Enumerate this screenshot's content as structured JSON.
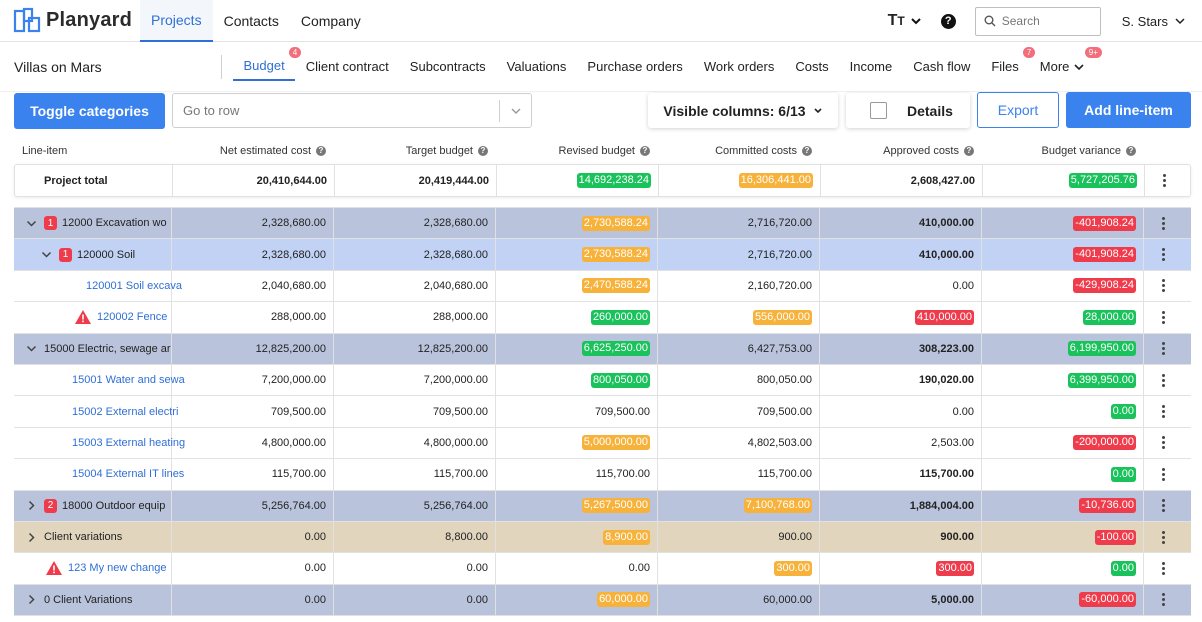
{
  "app": {
    "name": "Planyard"
  },
  "topnav": {
    "items": [
      {
        "label": "Projects",
        "active": true
      },
      {
        "label": "Contacts",
        "active": false
      },
      {
        "label": "Company",
        "active": false
      }
    ],
    "text_size_label": "T",
    "help_label": "?",
    "search_placeholder": "Search",
    "user": "S. Stars"
  },
  "project": {
    "name": "Villas on Mars"
  },
  "subnav": {
    "items": [
      {
        "label": "Budget",
        "badge": "4",
        "active": true
      },
      {
        "label": "Client contract",
        "badge": "",
        "active": false
      },
      {
        "label": "Subcontracts",
        "badge": "",
        "active": false
      },
      {
        "label": "Valuations",
        "badge": "",
        "active": false
      },
      {
        "label": "Purchase orders",
        "badge": "",
        "active": false
      },
      {
        "label": "Work orders",
        "badge": "",
        "active": false
      },
      {
        "label": "Costs",
        "badge": "",
        "active": false
      },
      {
        "label": "Income",
        "badge": "",
        "active": false
      },
      {
        "label": "Cash flow",
        "badge": "",
        "active": false
      },
      {
        "label": "Files",
        "badge": "7",
        "active": false
      },
      {
        "label": "More",
        "badge": "9+",
        "active": false
      }
    ]
  },
  "toolbar": {
    "toggle_label": "Toggle categories",
    "goto_placeholder": "Go to row",
    "visible_columns_label": "Visible columns: 6/13",
    "details_label": "Details",
    "export_label": "Export",
    "add_label": "Add line-item"
  },
  "table": {
    "columns": [
      "Line-item",
      "Net estimated cost",
      "Target budget",
      "Revised budget",
      "Committed costs",
      "Approved costs",
      "Budget variance"
    ],
    "total": {
      "label": "Project total",
      "values": [
        {
          "v": "20,410,644.00",
          "c": ""
        },
        {
          "v": "20,419,444.00",
          "c": ""
        },
        {
          "v": "14,692,238.24",
          "c": "green"
        },
        {
          "v": "16,306,441.00",
          "c": "orange"
        },
        {
          "v": "2,608,427.00",
          "c": ""
        },
        {
          "v": "5,727,205.76",
          "c": "green"
        }
      ]
    },
    "rows": [
      {
        "level": 0,
        "bg": "#b9c4dc",
        "chevron": "down",
        "badge": "1",
        "warn": false,
        "link": false,
        "bold_approved": true,
        "label": "12000 Excavation wo",
        "values": [
          {
            "v": "2,328,680.00",
            "c": ""
          },
          {
            "v": "2,328,680.00",
            "c": ""
          },
          {
            "v": "2,730,588.24",
            "c": "orange"
          },
          {
            "v": "2,716,720.00",
            "c": ""
          },
          {
            "v": "410,000.00",
            "c": ""
          },
          {
            "v": "-401,908.24",
            "c": "red"
          }
        ]
      },
      {
        "level": 1,
        "bg": "#c2d2f5",
        "chevron": "down",
        "badge": "1",
        "warn": false,
        "link": false,
        "bold_approved": true,
        "label": "120000 Soil",
        "values": [
          {
            "v": "2,328,680.00",
            "c": ""
          },
          {
            "v": "2,328,680.00",
            "c": ""
          },
          {
            "v": "2,730,588.24",
            "c": "orange"
          },
          {
            "v": "2,716,720.00",
            "c": ""
          },
          {
            "v": "410,000.00",
            "c": ""
          },
          {
            "v": "-401,908.24",
            "c": "red"
          }
        ]
      },
      {
        "level": 2,
        "bg": "#ffffff",
        "chevron": "",
        "badge": "",
        "warn": false,
        "link": true,
        "bold_approved": false,
        "label": "120001 Soil excava",
        "values": [
          {
            "v": "2,040,680.00",
            "c": ""
          },
          {
            "v": "2,040,680.00",
            "c": ""
          },
          {
            "v": "2,470,588.24",
            "c": "orange"
          },
          {
            "v": "2,160,720.00",
            "c": ""
          },
          {
            "v": "0.00",
            "c": ""
          },
          {
            "v": "-429,908.24",
            "c": "red"
          }
        ]
      },
      {
        "level": 2,
        "bg": "#ffffff",
        "chevron": "",
        "badge": "",
        "warn": true,
        "link": true,
        "bold_approved": false,
        "label": "120002 Fence",
        "values": [
          {
            "v": "288,000.00",
            "c": ""
          },
          {
            "v": "288,000.00",
            "c": ""
          },
          {
            "v": "260,000.00",
            "c": "green"
          },
          {
            "v": "556,000.00",
            "c": "orange"
          },
          {
            "v": "410,000.00",
            "c": "red"
          },
          {
            "v": "28,000.00",
            "c": "green"
          }
        ]
      },
      {
        "level": 0,
        "bg": "#b9c4dc",
        "chevron": "down",
        "badge": "",
        "warn": false,
        "link": false,
        "bold_approved": true,
        "label": "15000 Electric, sewage ar",
        "values": [
          {
            "v": "12,825,200.00",
            "c": ""
          },
          {
            "v": "12,825,200.00",
            "c": ""
          },
          {
            "v": "6,625,250.00",
            "c": "green"
          },
          {
            "v": "6,427,753.00",
            "c": ""
          },
          {
            "v": "308,223.00",
            "c": ""
          },
          {
            "v": "6,199,950.00",
            "c": "green"
          }
        ]
      },
      {
        "level": 1,
        "bg": "#ffffff",
        "chevron": "",
        "badge": "",
        "warn": false,
        "link": true,
        "bold_approved": true,
        "label": "15001 Water and sewa",
        "values": [
          {
            "v": "7,200,000.00",
            "c": ""
          },
          {
            "v": "7,200,000.00",
            "c": ""
          },
          {
            "v": "800,050.00",
            "c": "green"
          },
          {
            "v": "800,050.00",
            "c": ""
          },
          {
            "v": "190,020.00",
            "c": ""
          },
          {
            "v": "6,399,950.00",
            "c": "green"
          }
        ]
      },
      {
        "level": 1,
        "bg": "#ffffff",
        "chevron": "",
        "badge": "",
        "warn": false,
        "link": true,
        "bold_approved": false,
        "label": "15002 External electri",
        "values": [
          {
            "v": "709,500.00",
            "c": ""
          },
          {
            "v": "709,500.00",
            "c": ""
          },
          {
            "v": "709,500.00",
            "c": ""
          },
          {
            "v": "709,500.00",
            "c": ""
          },
          {
            "v": "0.00",
            "c": ""
          },
          {
            "v": "0.00",
            "c": "green"
          }
        ]
      },
      {
        "level": 1,
        "bg": "#ffffff",
        "chevron": "",
        "badge": "",
        "warn": false,
        "link": true,
        "bold_approved": false,
        "label": "15003 External heating",
        "values": [
          {
            "v": "4,800,000.00",
            "c": ""
          },
          {
            "v": "4,800,000.00",
            "c": ""
          },
          {
            "v": "5,000,000.00",
            "c": "orange"
          },
          {
            "v": "4,802,503.00",
            "c": ""
          },
          {
            "v": "2,503.00",
            "c": ""
          },
          {
            "v": "-200,000.00",
            "c": "red"
          }
        ]
      },
      {
        "level": 1,
        "bg": "#ffffff",
        "chevron": "",
        "badge": "",
        "warn": false,
        "link": true,
        "bold_approved": true,
        "label": "15004 External IT lines",
        "values": [
          {
            "v": "115,700.00",
            "c": ""
          },
          {
            "v": "115,700.00",
            "c": ""
          },
          {
            "v": "115,700.00",
            "c": ""
          },
          {
            "v": "115,700.00",
            "c": ""
          },
          {
            "v": "115,700.00",
            "c": ""
          },
          {
            "v": "0.00",
            "c": "green"
          }
        ]
      },
      {
        "level": 0,
        "bg": "#b9c4dc",
        "chevron": "right",
        "badge": "2",
        "warn": false,
        "link": false,
        "bold_approved": true,
        "label": "18000 Outdoor equip",
        "values": [
          {
            "v": "5,256,764.00",
            "c": ""
          },
          {
            "v": "5,256,764.00",
            "c": ""
          },
          {
            "v": "5,267,500.00",
            "c": "orange"
          },
          {
            "v": "7,100,768.00",
            "c": "orange"
          },
          {
            "v": "1,884,004.00",
            "c": ""
          },
          {
            "v": "-10,736.00",
            "c": "red"
          }
        ]
      },
      {
        "level": 0,
        "bg": "#e2d5bd",
        "chevron": "right",
        "badge": "",
        "warn": false,
        "link": false,
        "bold_approved": true,
        "label": "Client variations",
        "values": [
          {
            "v": "0.00",
            "c": ""
          },
          {
            "v": "8,800.00",
            "c": ""
          },
          {
            "v": "8,900.00",
            "c": "orange"
          },
          {
            "v": "900.00",
            "c": ""
          },
          {
            "v": "900.00",
            "c": ""
          },
          {
            "v": "-100.00",
            "c": "red"
          }
        ]
      },
      {
        "level": 1,
        "bg": "#ffffff",
        "chevron": "",
        "badge": "",
        "warn": true,
        "link": true,
        "bold_approved": false,
        "label": "123 My new change",
        "values": [
          {
            "v": "0.00",
            "c": ""
          },
          {
            "v": "0.00",
            "c": ""
          },
          {
            "v": "0.00",
            "c": ""
          },
          {
            "v": "300.00",
            "c": "orange"
          },
          {
            "v": "300.00",
            "c": "red"
          },
          {
            "v": "0.00",
            "c": "green"
          }
        ]
      },
      {
        "level": 0,
        "bg": "#b9c4dc",
        "chevron": "right",
        "badge": "",
        "warn": false,
        "link": false,
        "bold_approved": true,
        "label": "0 Client Variations",
        "values": [
          {
            "v": "0.00",
            "c": ""
          },
          {
            "v": "0.00",
            "c": ""
          },
          {
            "v": "60,000.00",
            "c": "orange"
          },
          {
            "v": "60,000.00",
            "c": ""
          },
          {
            "v": "5,000.00",
            "c": ""
          },
          {
            "v": "-60,000.00",
            "c": "red"
          }
        ]
      }
    ]
  }
}
